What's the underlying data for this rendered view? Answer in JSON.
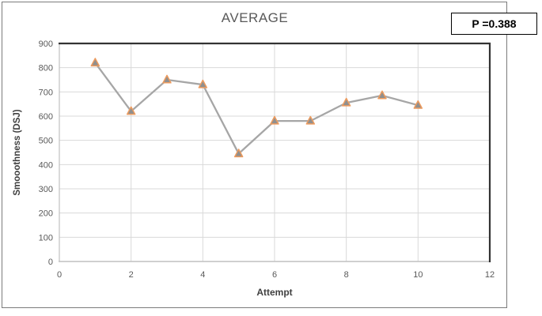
{
  "chart_data": {
    "type": "line",
    "title": "AVERAGE",
    "xlabel": "Attempt",
    "ylabel": "Smooothness (DSJ)",
    "x": [
      1,
      2,
      3,
      4,
      5,
      6,
      7,
      8,
      9,
      10
    ],
    "values": [
      820,
      620,
      750,
      730,
      445,
      580,
      580,
      655,
      685,
      645
    ],
    "xlim": [
      0,
      12
    ],
    "ylim": [
      0,
      900
    ],
    "x_ticks": [
      0,
      2,
      4,
      6,
      8,
      10,
      12
    ],
    "y_ticks": [
      0,
      100,
      200,
      300,
      400,
      500,
      600,
      700,
      800,
      900
    ],
    "grid": true,
    "legend": "none",
    "marker": "triangle",
    "colors": {
      "line": "#a6a6a6",
      "marker_fill": "#8f8f8f",
      "marker_stroke": "#ed9b5e",
      "grid": "#d9d9d9",
      "axis": "#c0c0c0",
      "plot_border": "#333333",
      "tick_label": "#595959",
      "axis_title": "#404040",
      "title": "#595959"
    }
  },
  "annotation": {
    "p_value_label": "P =0.388"
  }
}
